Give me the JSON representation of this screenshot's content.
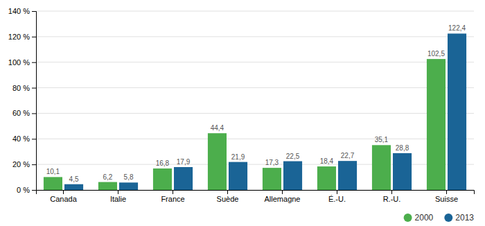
{
  "chart_data": {
    "type": "bar",
    "categories": [
      "Canada",
      "Italie",
      "France",
      "Suède",
      "Allemagne",
      "É.-U.",
      "R.-U.",
      "Suisse"
    ],
    "series": [
      {
        "name": "2000",
        "color": "#4cae4c",
        "values": [
          10.1,
          6.2,
          16.8,
          44.4,
          17.3,
          18.4,
          35.1,
          102.5
        ],
        "value_labels": [
          "10,1",
          "6,2",
          "16,8",
          "44,4",
          "17,3",
          "18,4",
          "35,1",
          "102,5"
        ]
      },
      {
        "name": "2013",
        "color": "#1a6496",
        "values": [
          4.5,
          5.8,
          17.9,
          21.9,
          22.5,
          22.7,
          28.8,
          122.4
        ],
        "value_labels": [
          "4,5",
          "5,8",
          "17,9",
          "21,9",
          "22,5",
          "22,7",
          "28,8",
          "122,4"
        ]
      }
    ],
    "ylim": [
      0,
      140
    ],
    "yticks": [
      {
        "value": 0,
        "label": "0 %"
      },
      {
        "value": 20,
        "label": "20 %"
      },
      {
        "value": 40,
        "label": "40 %"
      },
      {
        "value": 60,
        "label": "60 %"
      },
      {
        "value": 80,
        "label": "80 %"
      },
      {
        "value": 100,
        "label": "100 %"
      },
      {
        "value": 120,
        "label": "120 %"
      },
      {
        "value": 140,
        "label": "140 %"
      }
    ],
    "grid": true,
    "legend": "lower right",
    "data_labels": true
  }
}
